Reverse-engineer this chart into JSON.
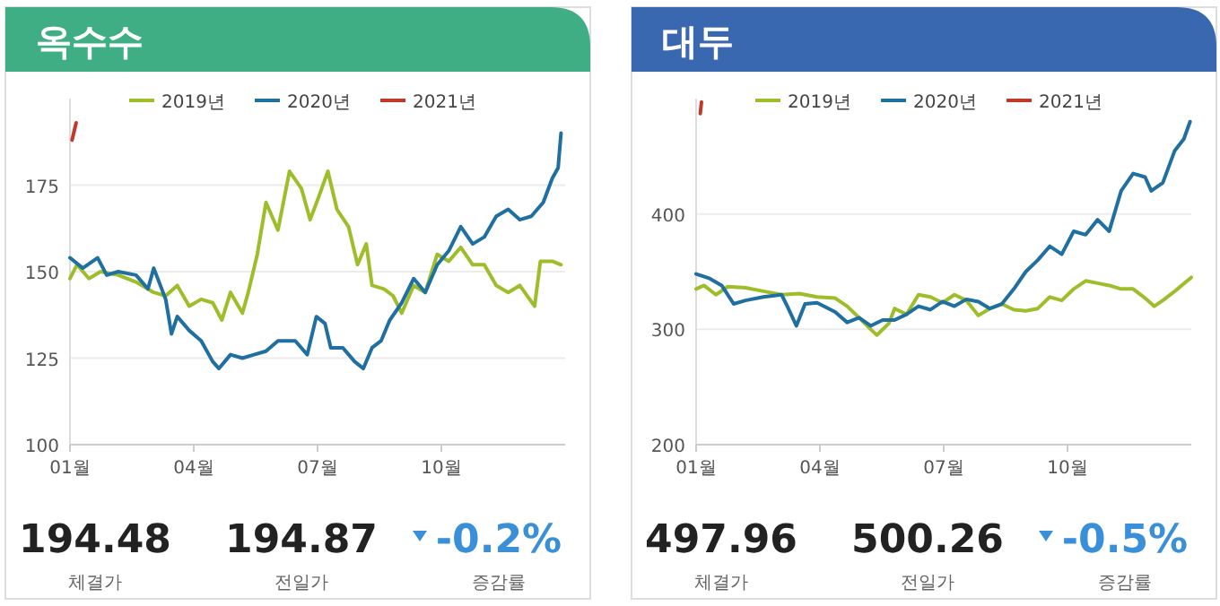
{
  "chart_data": [
    {
      "type": "line",
      "title": "옥수수",
      "xlim": [
        1,
        13
      ],
      "ylim": [
        100,
        200
      ],
      "xticks": [
        {
          "value": 1,
          "label": "01월"
        },
        {
          "value": 4,
          "label": "04월"
        },
        {
          "value": 7,
          "label": "07월"
        },
        {
          "value": 10,
          "label": "10월"
        }
      ],
      "yticks": [
        100,
        125,
        150,
        175
      ],
      "grid": "y",
      "legend": "top",
      "marker": "none",
      "line_style": "solid",
      "series": [
        {
          "name": "2019년",
          "color": "#9ebd2a",
          "x": [
            1.0,
            1.17,
            1.46,
            1.74,
            2.17,
            2.6,
            3.03,
            3.32,
            3.6,
            3.89,
            4.18,
            4.46,
            4.68,
            4.89,
            5.18,
            5.32,
            5.54,
            5.75,
            6.04,
            6.32,
            6.61,
            6.82,
            7.04,
            7.25,
            7.47,
            7.75,
            7.97,
            8.18,
            8.32,
            8.61,
            8.83,
            9.04,
            9.33,
            9.61,
            9.9,
            10.18,
            10.47,
            10.76,
            11.04,
            11.33,
            11.62,
            11.9,
            12.26,
            12.4,
            12.69,
            12.9
          ],
          "values": [
            148,
            152,
            148,
            150,
            149,
            147,
            144,
            143,
            146,
            140,
            142,
            141,
            136,
            144,
            138,
            144,
            155,
            170,
            162,
            179,
            174,
            165,
            172,
            179,
            168,
            163,
            152,
            158,
            146,
            145,
            143,
            138,
            146,
            144,
            155,
            153,
            157,
            152,
            152,
            146,
            144,
            146,
            140,
            153,
            153,
            152
          ]
        },
        {
          "name": "2020년",
          "color": "#1f6fa0",
          "x": [
            1.0,
            1.31,
            1.67,
            1.89,
            2.17,
            2.6,
            2.89,
            3.03,
            3.32,
            3.46,
            3.6,
            3.89,
            4.18,
            4.46,
            4.61,
            4.89,
            5.18,
            5.46,
            5.75,
            6.04,
            6.46,
            6.75,
            6.97,
            7.18,
            7.32,
            7.61,
            7.9,
            8.11,
            8.32,
            8.54,
            8.75,
            9.04,
            9.33,
            9.61,
            9.9,
            10.18,
            10.47,
            10.76,
            11.04,
            11.33,
            11.62,
            11.9,
            12.18,
            12.47,
            12.69,
            12.83,
            12.9
          ],
          "values": [
            154,
            151,
            154,
            149,
            150,
            149,
            145,
            151,
            142,
            132,
            137,
            133,
            130,
            124,
            122,
            126,
            125,
            126,
            127,
            130,
            130,
            126,
            137,
            135,
            128,
            128,
            124,
            122,
            128,
            130,
            136,
            141,
            148,
            144,
            152,
            156,
            163,
            158,
            160,
            166,
            168,
            165,
            166,
            170,
            177,
            180,
            190
          ]
        },
        {
          "name": "2021년",
          "color": "#c0392b",
          "x": [
            1.05,
            1.15
          ],
          "values": [
            188,
            193
          ]
        }
      ],
      "annotations": [
        "194.48",
        "체결가",
        "194.87",
        "전일가",
        "-0.2%",
        "증감률"
      ]
    },
    {
      "type": "line",
      "title": "대두",
      "xlim": [
        1,
        13
      ],
      "ylim": [
        200,
        500
      ],
      "xticks": [
        {
          "value": 1,
          "label": "01월"
        },
        {
          "value": 4,
          "label": "04월"
        },
        {
          "value": 7,
          "label": "07월"
        },
        {
          "value": 10,
          "label": "10월"
        }
      ],
      "yticks": [
        200,
        300,
        400
      ],
      "grid": "y",
      "legend": "top",
      "marker": "none",
      "line_style": "solid",
      "series": [
        {
          "name": "2019년",
          "color": "#9ebd2a",
          "x": [
            1,
            1.19,
            1.48,
            1.77,
            2.2,
            2.63,
            3.07,
            3.5,
            3.93,
            4.37,
            4.66,
            4.95,
            5.23,
            5.38,
            5.67,
            5.81,
            6.1,
            6.39,
            6.68,
            6.97,
            7.26,
            7.55,
            7.84,
            8.12,
            8.41,
            8.7,
            8.99,
            9.28,
            9.57,
            9.86,
            10.15,
            10.44,
            10.73,
            11.01,
            11.3,
            11.59,
            11.88,
            12.1,
            12.31,
            12.6,
            13
          ],
          "values": [
            335,
            338,
            330,
            337,
            336,
            333,
            330,
            331,
            328,
            327,
            320,
            310,
            300,
            295,
            305,
            318,
            313,
            330,
            328,
            323,
            330,
            325,
            312,
            318,
            322,
            317,
            316,
            318,
            328,
            325,
            335,
            342,
            340,
            338,
            335,
            335,
            327,
            320,
            325,
            333,
            345
          ]
        },
        {
          "name": "2020년",
          "color": "#1f6fa0",
          "x": [
            1,
            1.33,
            1.62,
            1.91,
            2.2,
            2.63,
            3.07,
            3.21,
            3.43,
            3.64,
            3.93,
            4.37,
            4.66,
            4.95,
            5.23,
            5.52,
            5.81,
            6.1,
            6.39,
            6.68,
            6.97,
            7.26,
            7.55,
            7.84,
            8.12,
            8.41,
            8.7,
            8.99,
            9.28,
            9.57,
            9.86,
            10.15,
            10.44,
            10.73,
            11.01,
            11.3,
            11.59,
            11.88,
            12.03,
            12.31,
            12.6,
            12.82,
            12.97
          ],
          "values": [
            348,
            344,
            338,
            322,
            325,
            328,
            330,
            320,
            303,
            322,
            323,
            315,
            306,
            310,
            303,
            308,
            308,
            313,
            320,
            317,
            324,
            320,
            326,
            324,
            318,
            322,
            335,
            350,
            360,
            372,
            365,
            385,
            382,
            395,
            385,
            420,
            435,
            432,
            420,
            427,
            455,
            465,
            480
          ]
        },
        {
          "name": "2021년",
          "color": "#c0392b",
          "x": [
            1.1,
            1.13
          ],
          "values": [
            487,
            497
          ]
        }
      ],
      "annotations": [
        "497.96",
        "체결가",
        "500.26",
        "전일가",
        "-0.5%",
        "증감률"
      ]
    }
  ]
}
